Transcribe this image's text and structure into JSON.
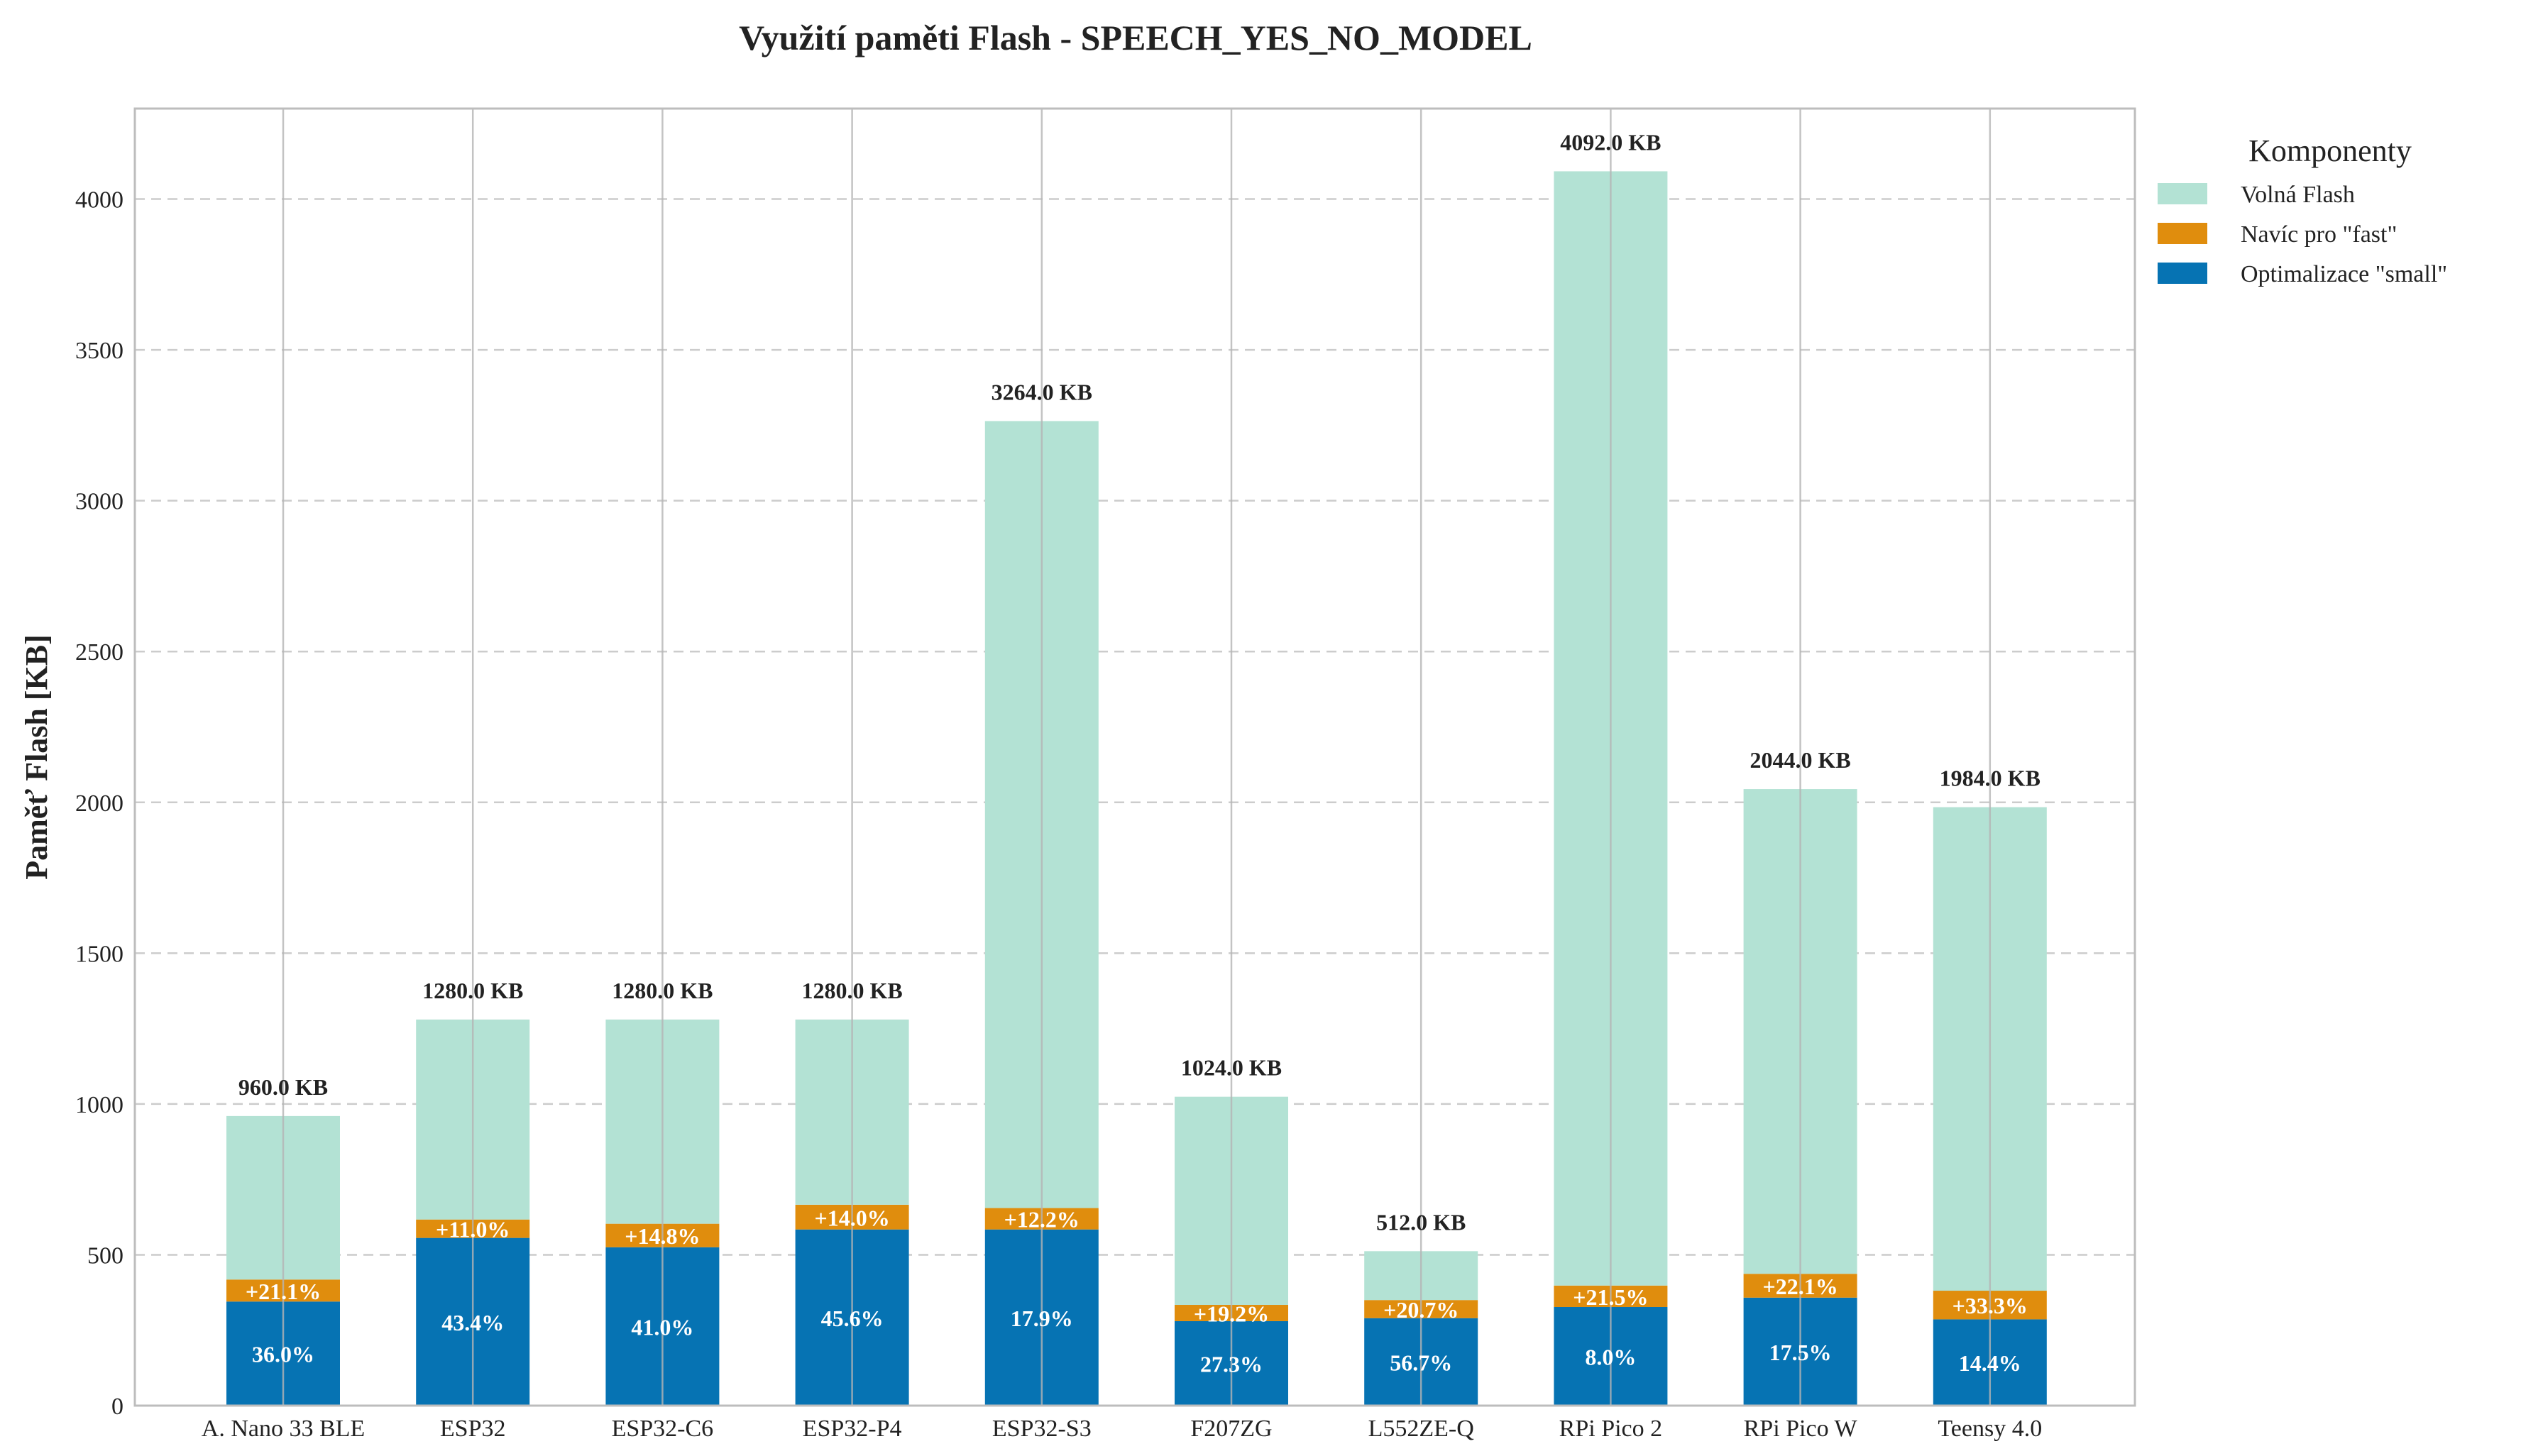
{
  "chart_data": {
    "type": "bar",
    "stacked": true,
    "title": "Využití paměti Flash - SPEECH_YES_NO_MODEL",
    "xlabel": "",
    "ylabel": "Paměť Flash [KB]",
    "ylim": [
      0,
      4300
    ],
    "yticks": [
      0,
      500,
      1000,
      1500,
      2000,
      2500,
      3000,
      3500,
      4000
    ],
    "grid": {
      "y": true,
      "x": true
    },
    "legend": {
      "title": "Komponenty",
      "placement": "outside-top-right",
      "entries": [
        {
          "label": "Volná Flash",
          "color": "#b3e2d4"
        },
        {
          "label": "Navíc pro \"fast\"",
          "color": "#e08d0d"
        },
        {
          "label": "Optimalizace \"small\"",
          "color": "#0673b3"
        }
      ]
    },
    "colors": {
      "small": "#0673b3",
      "fast": "#e08d0d",
      "free": "#b3e2d4"
    },
    "categories": [
      "A. Nano 33 BLE",
      "ESP32",
      "ESP32-C6",
      "ESP32-P4",
      "ESP32-S3",
      "F207ZG",
      "L552ZE-Q",
      "RPi Pico 2",
      "RPi Pico W",
      "Teensy 4.0"
    ],
    "series": [
      {
        "name": "Optimalizace \"small\"",
        "key": "small",
        "values": [
          345,
          556,
          525,
          584,
          584,
          280,
          290,
          327,
          358,
          286
        ]
      },
      {
        "name": "Navíc pro \"fast\"",
        "key": "fast",
        "values": [
          73,
          61,
          78,
          82,
          71,
          54,
          60,
          71,
          79,
          95
        ]
      },
      {
        "name": "Volná Flash",
        "key": "free",
        "values": [
          542,
          663,
          677,
          614,
          2609,
          690,
          162,
          3694,
          1607,
          1603
        ]
      }
    ],
    "totals": [
      960.0,
      1280.0,
      1280.0,
      1280.0,
      3264.0,
      1024.0,
      512.0,
      4092.0,
      2044.0,
      1984.0
    ],
    "total_labels": [
      "960.0 KB",
      "1280.0 KB",
      "1280.0 KB",
      "1280.0 KB",
      "3264.0 KB",
      "1024.0 KB",
      "512.0 KB",
      "4092.0 KB",
      "2044.0 KB",
      "1984.0 KB"
    ],
    "small_pct_labels": [
      "36.0%",
      "43.4%",
      "41.0%",
      "45.6%",
      "17.9%",
      "27.3%",
      "56.7%",
      "8.0%",
      "17.5%",
      "14.4%"
    ],
    "fast_pct_labels": [
      "+21.1%",
      "+11.0%",
      "+14.8%",
      "+14.0%",
      "+12.2%",
      "+19.2%",
      "+20.7%",
      "+21.5%",
      "+22.1%",
      "+33.3%"
    ]
  }
}
